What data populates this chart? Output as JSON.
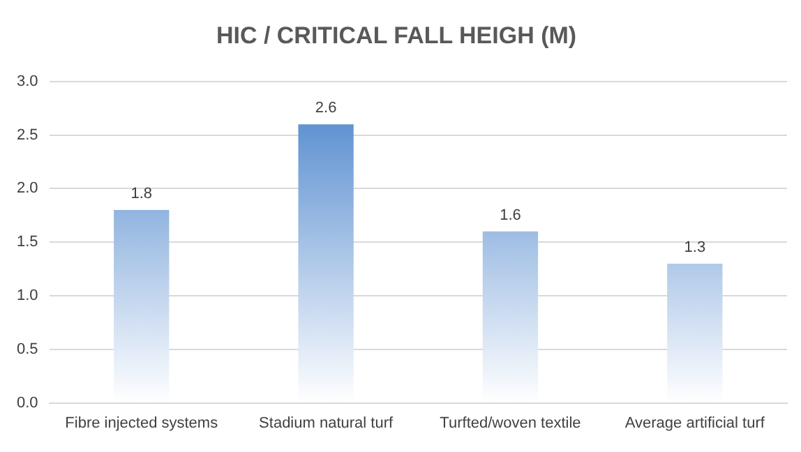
{
  "chart_data": {
    "type": "bar",
    "title": "HIC / CRITICAL FALL HEIGH (M)",
    "categories": [
      "Fibre injected systems",
      "Stadium natural turf",
      "Turfted/woven textile",
      "Average artificial turf"
    ],
    "values": [
      1.8,
      2.6,
      1.6,
      1.3
    ],
    "color": "#5b8fd0",
    "ylim": [
      0,
      3
    ],
    "yticks": [
      {
        "value": 0,
        "label": "0.0"
      },
      {
        "value": 0.5,
        "label": "0.5"
      },
      {
        "value": 1,
        "label": "1.0"
      },
      {
        "value": 1.5,
        "label": "1.5"
      },
      {
        "value": 2,
        "label": "2.0"
      },
      {
        "value": 2.5,
        "label": "2.5"
      },
      {
        "value": 3,
        "label": "3.0"
      }
    ],
    "grid": "y",
    "data_labels": true
  }
}
